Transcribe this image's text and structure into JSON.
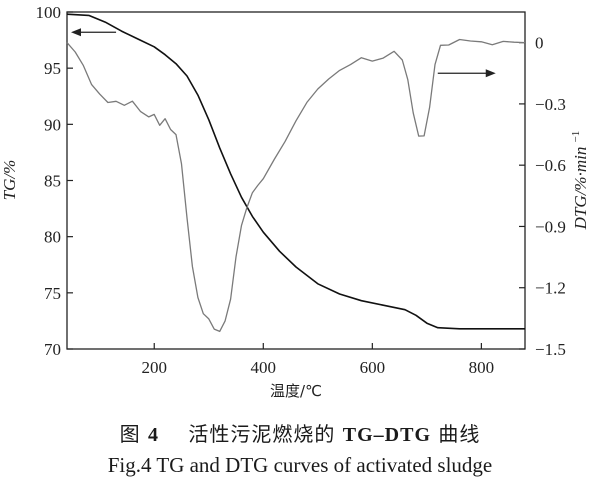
{
  "chart_data": {
    "type": "line",
    "xlabel": "温度/℃",
    "ylabel_left": "TG/%",
    "ylabel_right": "DTG/%·min",
    "ylabel_right_superscript": "−1",
    "xlim": [
      40,
      880
    ],
    "ylim_left": [
      70,
      100
    ],
    "ylim_right": [
      -1.5,
      0.15
    ],
    "x_ticks": [
      200,
      400,
      600,
      800
    ],
    "x_tick_labels": [
      "200",
      "400",
      "600",
      "800"
    ],
    "y_left_ticks": [
      70,
      75,
      80,
      85,
      90,
      95,
      100
    ],
    "y_left_tick_labels": [
      "70",
      "75",
      "80",
      "85",
      "90",
      "95",
      "100"
    ],
    "y_right_ticks": [
      -1.5,
      -1.2,
      -0.9,
      -0.6,
      -0.3,
      0
    ],
    "y_right_tick_labels": [
      "−1.5",
      "−1.2",
      "−0.9",
      "−0.6",
      "−0.3",
      "0"
    ],
    "grid": false,
    "legend": "none",
    "annotations": [
      {
        "kind": "arrow",
        "points_to": "left axis",
        "series": "TG",
        "at": {
          "x": 130,
          "y_left": 98.2
        }
      },
      {
        "kind": "arrow",
        "points_to": "right axis",
        "series": "DTG",
        "at": {
          "x": 720,
          "y_right": -0.15
        }
      }
    ],
    "series": [
      {
        "id": "TG",
        "axis": "left",
        "x": [
          40,
          80,
          110,
          140,
          170,
          200,
          220,
          240,
          260,
          280,
          300,
          320,
          340,
          360,
          380,
          400,
          430,
          460,
          500,
          540,
          580,
          620,
          660,
          680,
          700,
          720,
          760,
          800,
          840,
          880
        ],
        "y": [
          99.8,
          99.7,
          99.1,
          98.3,
          97.6,
          96.9,
          96.2,
          95.4,
          94.3,
          92.6,
          90.4,
          87.9,
          85.6,
          83.5,
          81.8,
          80.4,
          78.7,
          77.3,
          75.8,
          74.9,
          74.3,
          73.9,
          73.5,
          73.0,
          72.3,
          71.9,
          71.8,
          71.8,
          71.8,
          71.8
        ]
      },
      {
        "id": "DTG",
        "axis": "right",
        "x": [
          40,
          55,
          70,
          85,
          100,
          115,
          130,
          145,
          160,
          175,
          190,
          200,
          210,
          220,
          230,
          240,
          250,
          260,
          270,
          280,
          290,
          300,
          310,
          320,
          330,
          340,
          350,
          360,
          370,
          380,
          390,
          400,
          420,
          440,
          460,
          480,
          500,
          520,
          540,
          560,
          580,
          600,
          620,
          640,
          655,
          665,
          675,
          685,
          695,
          705,
          715,
          725,
          740,
          760,
          780,
          800,
          820,
          840,
          860,
          880
        ],
        "y": [
          0.0,
          -0.04,
          -0.12,
          -0.2,
          -0.25,
          -0.3,
          -0.28,
          -0.31,
          -0.29,
          -0.33,
          -0.37,
          -0.35,
          -0.4,
          -0.38,
          -0.42,
          -0.45,
          -0.6,
          -0.85,
          -1.1,
          -1.25,
          -1.32,
          -1.36,
          -1.4,
          -1.41,
          -1.37,
          -1.25,
          -1.05,
          -0.9,
          -0.8,
          -0.74,
          -0.7,
          -0.66,
          -0.58,
          -0.48,
          -0.38,
          -0.3,
          -0.22,
          -0.18,
          -0.14,
          -0.1,
          -0.08,
          -0.09,
          -0.07,
          -0.05,
          -0.08,
          -0.18,
          -0.35,
          -0.45,
          -0.46,
          -0.32,
          -0.1,
          -0.02,
          -0.01,
          0.02,
          0.0,
          0.01,
          -0.01,
          0.0,
          0.01,
          0.0
        ]
      }
    ]
  },
  "caption": {
    "cn_prefix": "图",
    "cn_number": "4",
    "cn_text": "活性污泥燃烧的",
    "cn_bold": "TG–DTG",
    "cn_suffix": "曲线",
    "en": "Fig.4 TG and DTG curves of activated sludge"
  }
}
